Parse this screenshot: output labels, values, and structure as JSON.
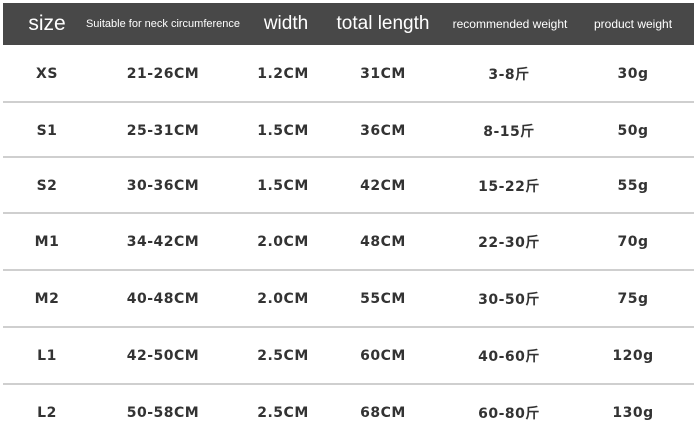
{
  "headers": [
    "size",
    "Suitable for neck circumference",
    "width",
    "total length",
    "recommended weight",
    "product weight"
  ],
  "rows": [
    [
      "XS",
      "21-26CM",
      "1.2CM",
      "31CM",
      "3-8斤",
      "30g"
    ],
    [
      "S1",
      "25-31CM",
      "1.5CM",
      "36CM",
      "8-15斤",
      "50g"
    ],
    [
      "S2",
      "30-36CM",
      "1.5CM",
      "42CM",
      "15-22斤",
      "55g"
    ],
    [
      "M1",
      "34-42CM",
      "2.0CM",
      "48CM",
      "22-30斤",
      "70g"
    ],
    [
      "M2",
      "40-48CM",
      "2.0CM",
      "55CM",
      "30-50斤",
      "75g"
    ],
    [
      "L1",
      "42-50CM",
      "2.5CM",
      "60CM",
      "40-60斤",
      "120g"
    ],
    [
      "L2",
      "50-58CM",
      "2.5CM",
      "68CM",
      "60-80斤",
      "130g"
    ]
  ],
  "colors": {
    "header_bg": "#484848",
    "header_text": "#ffffff",
    "row_text": "#333333",
    "divider": "#cfcfcf"
  }
}
